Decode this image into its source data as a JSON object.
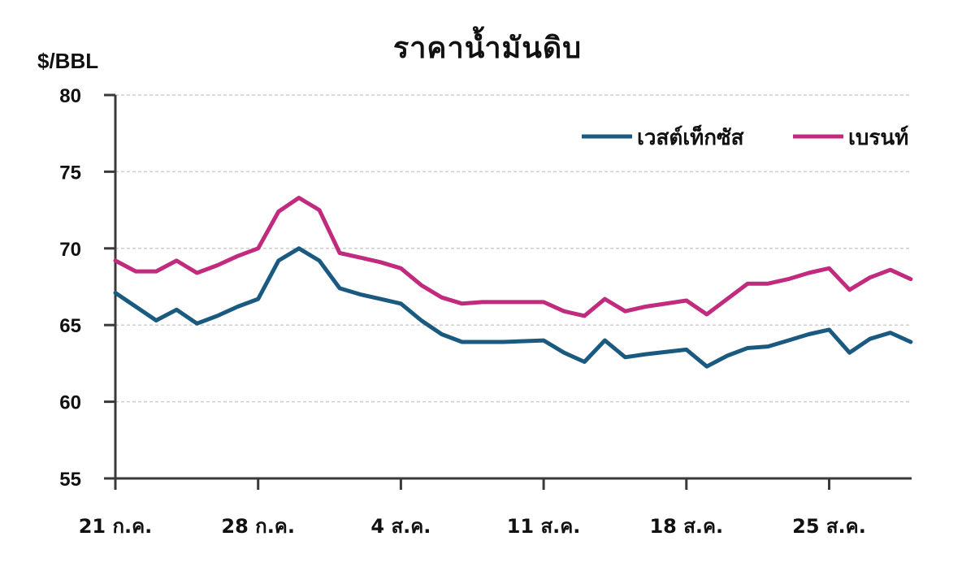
{
  "chart_data": {
    "type": "line",
    "title": "ราคาน้ำมันดิบ",
    "ylabel": "$/BBL",
    "xlabel": "",
    "ylim": [
      55,
      80
    ],
    "yticks": [
      55,
      60,
      65,
      70,
      75,
      80
    ],
    "grid": true,
    "legend_position": "top-right",
    "x_tick_labels": [
      "21 ก.ค.",
      "28 ก.ค.",
      "4 ส.ค.",
      "11 ส.ค.",
      "18 ส.ค.",
      "25 ส.ค."
    ],
    "x_tick_positions": [
      0,
      7,
      14,
      21,
      28,
      35
    ],
    "x": [
      0,
      1,
      2,
      3,
      4,
      5,
      6,
      7,
      8,
      9,
      10,
      11,
      12,
      13,
      14,
      15,
      16,
      17,
      18,
      19,
      21,
      22,
      23,
      24,
      25,
      26,
      28,
      29,
      30,
      31,
      32,
      33,
      34,
      35,
      36,
      37,
      38,
      39
    ],
    "series": [
      {
        "name": "เวสต์เท็กซัส",
        "color": "#1b5a80",
        "values": [
          67.1,
          66.2,
          65.3,
          66.0,
          65.1,
          65.6,
          66.2,
          66.7,
          69.2,
          70.0,
          69.2,
          67.4,
          67.0,
          66.7,
          66.4,
          65.3,
          64.4,
          63.9,
          63.9,
          63.9,
          64.0,
          63.2,
          62.6,
          64.0,
          62.9,
          63.1,
          63.4,
          62.3,
          63.0,
          63.5,
          63.6,
          64.0,
          64.4,
          64.7,
          63.2,
          64.1,
          64.5,
          63.9
        ]
      },
      {
        "name": "เบรนท์",
        "color": "#c12b7e",
        "values": [
          69.2,
          68.5,
          68.5,
          69.2,
          68.4,
          68.9,
          69.5,
          70.0,
          72.4,
          73.3,
          72.5,
          69.7,
          69.4,
          69.1,
          68.7,
          67.6,
          66.8,
          66.4,
          66.5,
          66.5,
          66.5,
          65.9,
          65.6,
          66.7,
          65.9,
          66.2,
          66.6,
          65.7,
          66.7,
          67.7,
          67.7,
          68.0,
          68.4,
          68.7,
          67.3,
          68.1,
          68.6,
          68.0
        ]
      }
    ]
  },
  "header": {
    "title": "ราคาน้ำมันดิบ",
    "unit": "$/BBL"
  },
  "legend": {
    "wti_label": "เวสต์เท็กซัส",
    "brent_label": "เบรนท์"
  },
  "axis": {
    "y_labels": [
      "80",
      "75",
      "70",
      "65",
      "60",
      "55"
    ],
    "x_labels": [
      "21 ก.ค.",
      "28 ก.ค.",
      "4 ส.ค.",
      "11 ส.ค.",
      "18 ส.ค.",
      "25 ส.ค."
    ]
  },
  "colors": {
    "wti": "#1b5a80",
    "brent": "#c12b7e",
    "axis": "#3a3a3a",
    "grid": "#cfcfcf"
  }
}
